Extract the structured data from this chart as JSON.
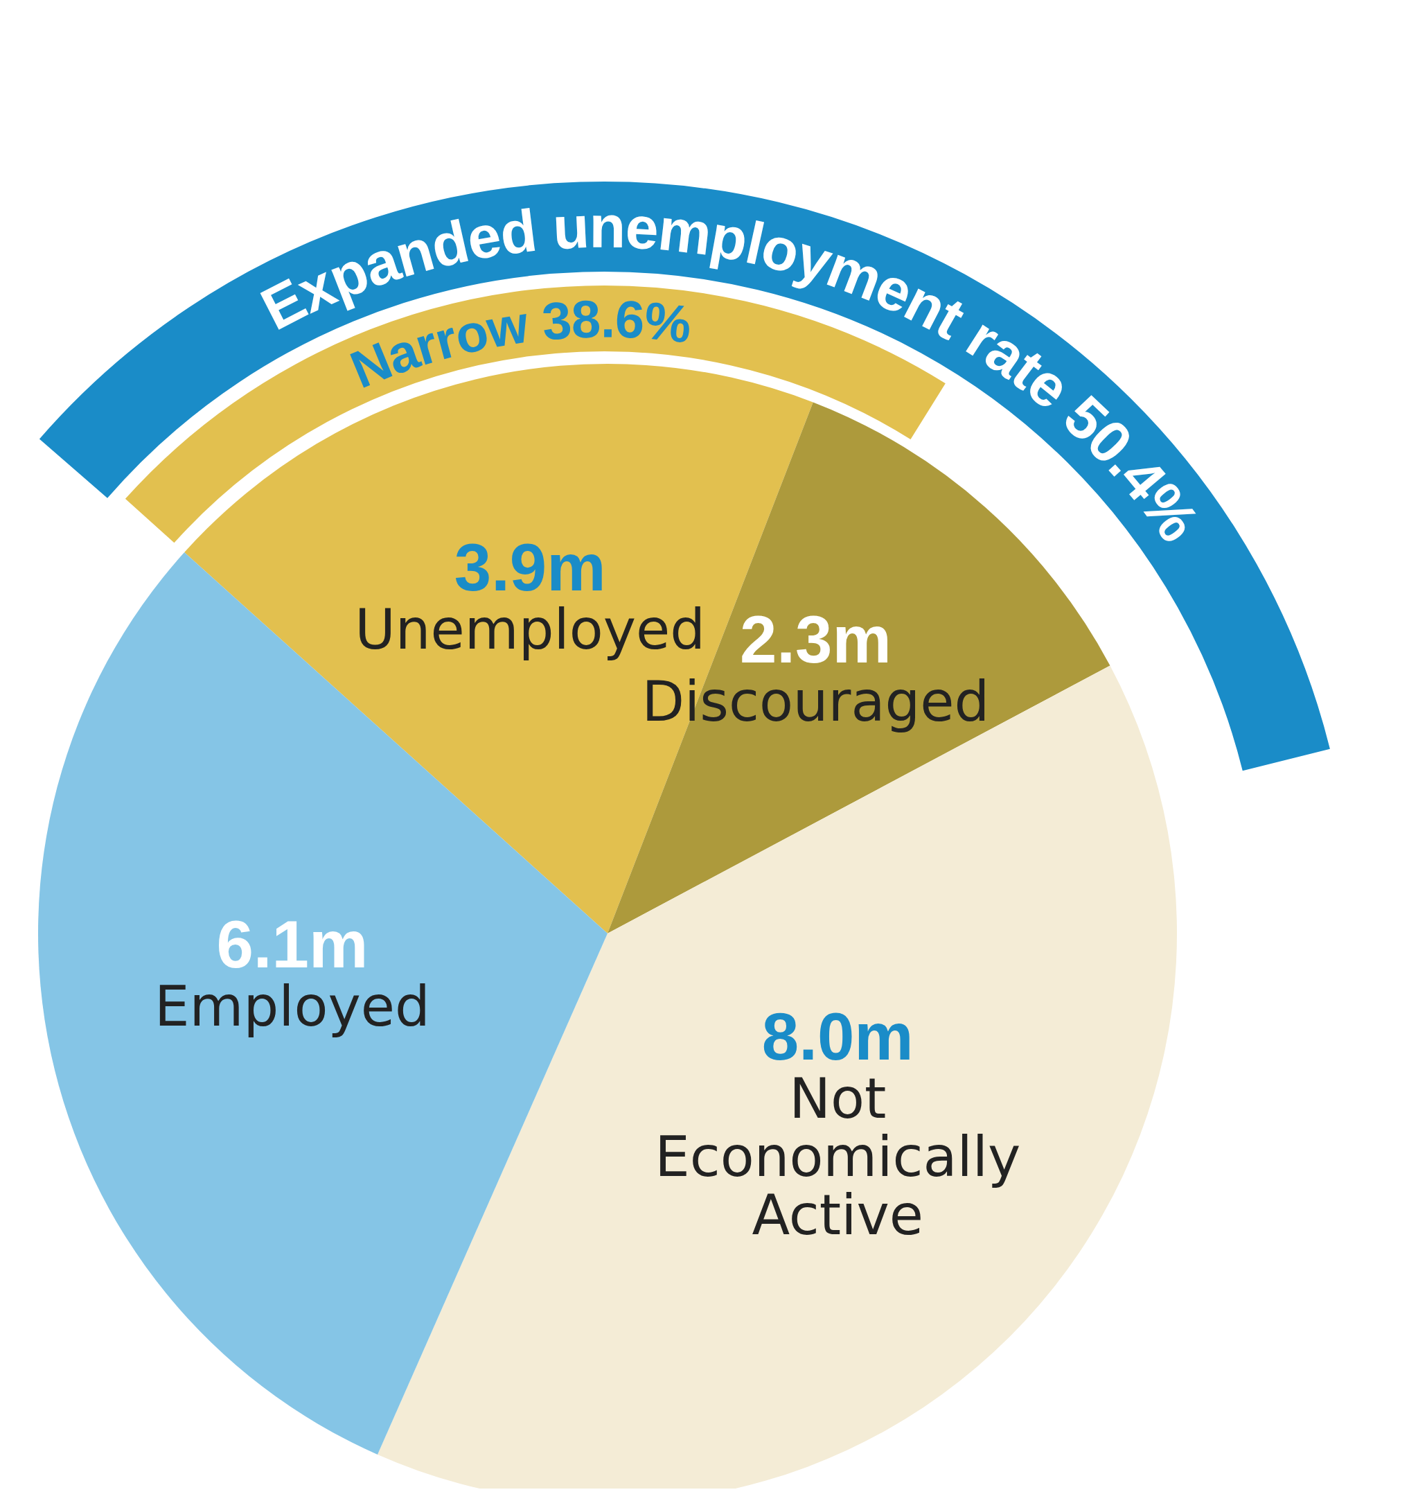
{
  "chart_data": {
    "type": "pie",
    "categories": [
      "Unemployed",
      "Discouraged",
      "Not Economically Active",
      "Employed"
    ],
    "values": [
      3.9,
      2.3,
      8.0,
      6.1
    ],
    "value_labels": [
      "3.9m",
      "2.3m",
      "8.0m",
      "6.1m"
    ],
    "colors": [
      "#e2c04f",
      "#ad9a3c",
      "#f4ecd6",
      "#85c5e6"
    ],
    "annotations": [
      "Expanded unemployment rate 50.4%",
      "Narrow 38.6%"
    ]
  }
}
